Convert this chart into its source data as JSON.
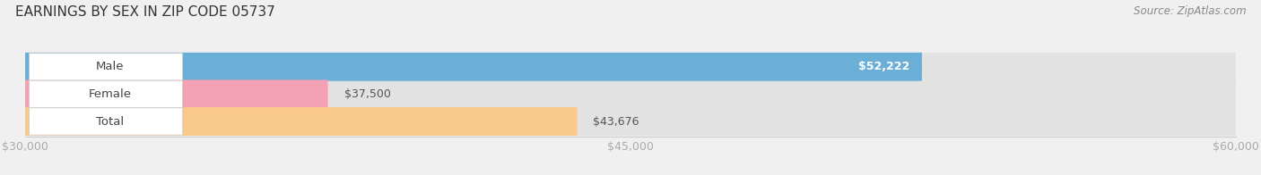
{
  "title": "EARNINGS BY SEX IN ZIP CODE 05737",
  "source": "Source: ZipAtlas.com",
  "categories": [
    "Male",
    "Female",
    "Total"
  ],
  "values": [
    52222,
    37500,
    43676
  ],
  "bar_colors": [
    "#6baed6",
    "#f4a0b5",
    "#f8c98a"
  ],
  "value_labels": [
    "$52,222",
    "$37,500",
    "$43,676"
  ],
  "value_inside": [
    true,
    false,
    false
  ],
  "xlim": [
    30000,
    60000
  ],
  "xticks": [
    30000,
    45000,
    60000
  ],
  "xtick_labels": [
    "$30,000",
    "$45,000",
    "$60,000"
  ],
  "background_color": "#f0f0f0",
  "bar_bg_color": "#e2e2e2",
  "title_fontsize": 11,
  "tick_fontsize": 9,
  "label_fontsize": 9.5,
  "value_fontsize": 9
}
